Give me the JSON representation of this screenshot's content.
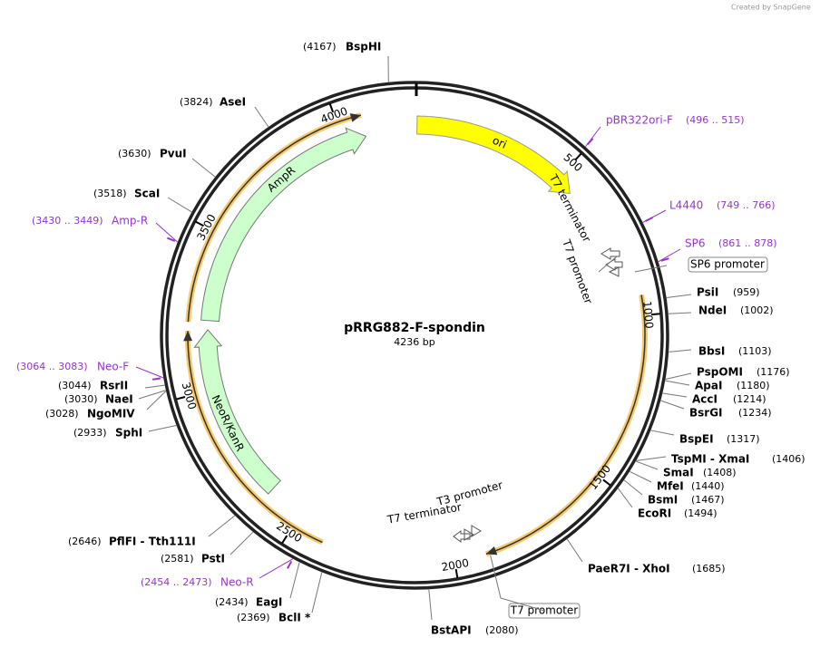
{
  "watermark": "Created by SnapGene",
  "title": "pRRG882-F-spondin",
  "length": "4236 bp",
  "ticks": [
    500,
    1000,
    1500,
    2000,
    2500,
    3000,
    3500,
    4000
  ],
  "features": [
    {
      "name": "ori"
    },
    {
      "name": "AmpR"
    },
    {
      "name": "NeoR/KanR"
    }
  ],
  "element_labels": [
    "T7 terminator",
    "T7 promoter",
    "T3 promoter",
    "T7 terminator"
  ],
  "boxes": [
    "SP6 promoter",
    "T7 promoter"
  ],
  "sites": [
    {
      "name": "BspHI",
      "site": "(4167)"
    },
    {
      "name": "AseI",
      "site": "(3824)"
    },
    {
      "name": "PvuI",
      "site": "(3630)"
    },
    {
      "name": "ScaI",
      "site": "(3518)"
    },
    {
      "name": "RsrII",
      "site": "(3044)"
    },
    {
      "name": "NaeI",
      "site": "(3030)"
    },
    {
      "name": "NgoMIV",
      "site": "(3028)"
    },
    {
      "name": "SphI",
      "site": "(2933)"
    },
    {
      "name": "PflFI - Tth111I",
      "site": "(2646)"
    },
    {
      "name": "PstI",
      "site": "(2581)"
    },
    {
      "name": "EagI",
      "site": "(2434)"
    },
    {
      "name": "BclI *",
      "site": "(2369)"
    },
    {
      "name": "BstAPI",
      "site": "(2080)"
    },
    {
      "name": "PsiI",
      "site": "(959)"
    },
    {
      "name": "NdeI",
      "site": "(1002)"
    },
    {
      "name": "BbsI",
      "site": "(1103)"
    },
    {
      "name": "PspOMI",
      "site": "(1176)"
    },
    {
      "name": "ApaI",
      "site": "(1180)"
    },
    {
      "name": "AccI",
      "site": "(1214)"
    },
    {
      "name": "BsrGI",
      "site": "(1234)"
    },
    {
      "name": "BspEI",
      "site": "(1317)"
    },
    {
      "name": "TspMI - XmaI",
      "site": "(1406)"
    },
    {
      "name": "SmaI",
      "site": "(1408)"
    },
    {
      "name": "MfeI",
      "site": "(1440)"
    },
    {
      "name": "BsmI",
      "site": "(1467)"
    },
    {
      "name": "EcoRI",
      "site": "(1494)"
    },
    {
      "name": "PaeR7I - XhoI",
      "site": "(1685)"
    }
  ],
  "primers": [
    {
      "name": "pBR322ori-F",
      "range": "(496 .. 515)"
    },
    {
      "name": "L4440",
      "range": "(749 .. 766)"
    },
    {
      "name": "SP6",
      "range": "(861 .. 878)"
    },
    {
      "name": "Amp-R",
      "range": "(3430 .. 3449)"
    },
    {
      "name": "Neo-F",
      "range": "(3064 .. 3083)"
    },
    {
      "name": "Neo-R",
      "range": "(2454 .. 2473)"
    }
  ]
}
